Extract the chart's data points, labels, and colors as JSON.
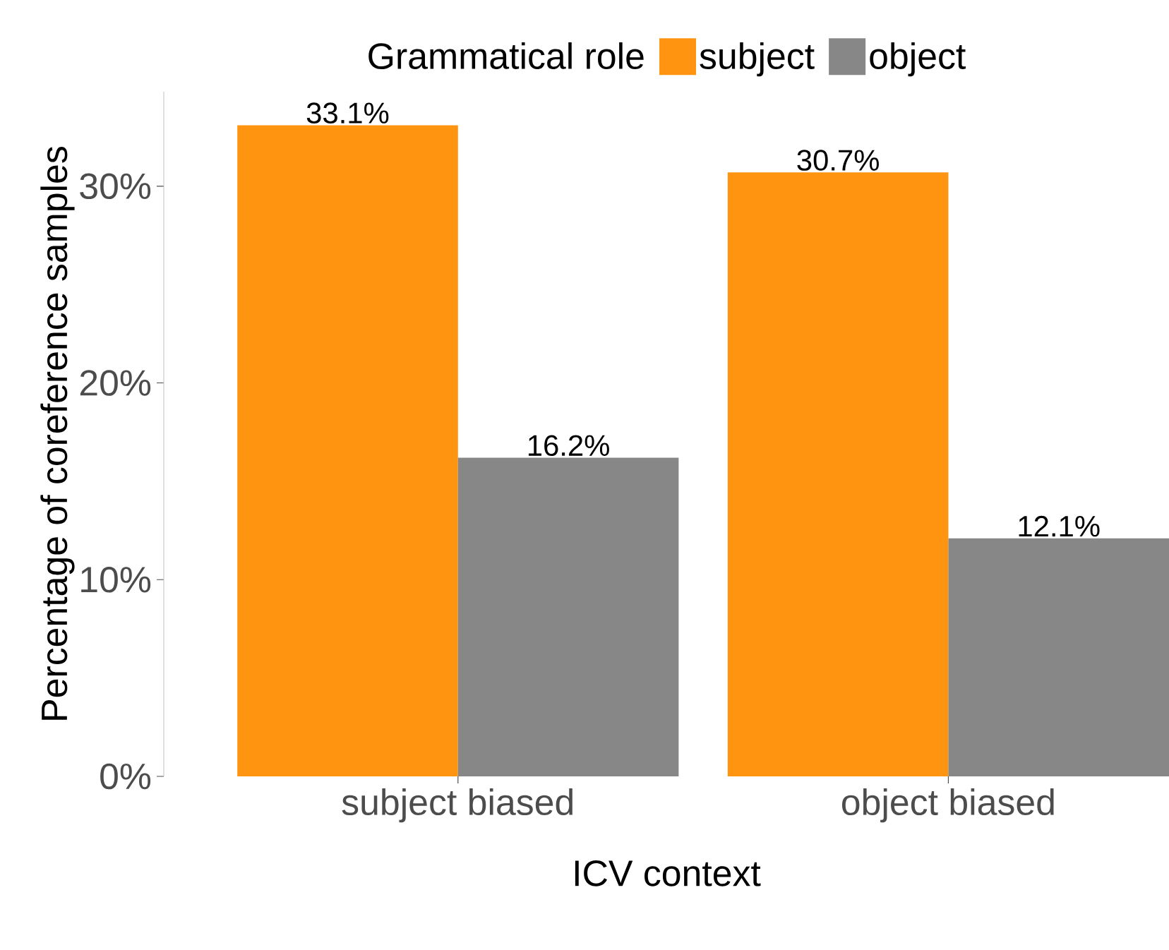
{
  "chart_data": {
    "type": "bar",
    "xlabel": "ICV context",
    "ylabel": "Percentage of coreference samples",
    "legend_title": "Grammatical role",
    "categories": [
      "subject biased",
      "object biased"
    ],
    "series": [
      {
        "name": "subject",
        "color": "#ff9410",
        "values": [
          33.1,
          30.7
        ],
        "value_labels": [
          "33.1%",
          "30.7%"
        ]
      },
      {
        "name": "object",
        "color": "#878787",
        "values": [
          16.2,
          12.1
        ],
        "value_labels": [
          "16.2%",
          "12.1%"
        ]
      }
    ],
    "ylim": [
      0,
      34.8
    ],
    "yticks": [
      {
        "value": 0,
        "label": "0%"
      },
      {
        "value": 10,
        "label": "10%"
      },
      {
        "value": 20,
        "label": "20%"
      },
      {
        "value": 30,
        "label": "30%"
      }
    ],
    "grid": false,
    "legend": "top"
  }
}
